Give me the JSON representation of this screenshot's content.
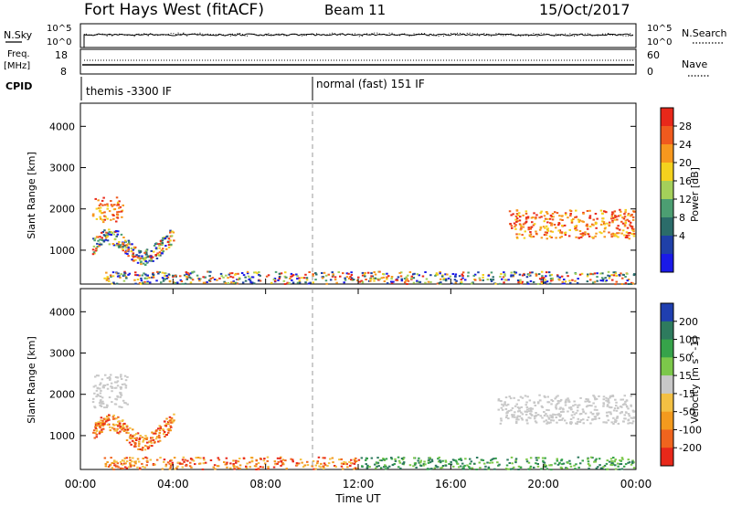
{
  "header": {
    "station": "Fort Hays West (fitACF)",
    "beam": "Beam 11",
    "date": "15/Oct/2017"
  },
  "top_panel": {
    "left_label": "N.Sky",
    "left_ticks": [
      "10^5",
      "10^0"
    ],
    "right_ticks": [
      "10^5",
      "10^0"
    ],
    "right_label": "N.Search"
  },
  "freq_panel": {
    "left_label_1": "Freq.",
    "left_label_2": "[MHz]",
    "left_ticks": [
      "18",
      "8"
    ],
    "right_ticks": [
      "60",
      "0"
    ],
    "right_label": "Nave"
  },
  "cpid_panel": {
    "label": "CPID",
    "mode_1": "themis -3300 IF",
    "mode_2": "normal (fast) 151 IF"
  },
  "chart_data": [
    {
      "type": "heatmap",
      "title": "",
      "xlabel": "",
      "ylabel": "Slant Range [km]",
      "x_ticks": [
        "00:00",
        "04:00",
        "08:00",
        "12:00",
        "16:00",
        "20:00",
        "00:00"
      ],
      "xlim_hours": [
        0,
        24
      ],
      "y_ticks": [
        1000,
        2000,
        3000,
        4000
      ],
      "ylim": [
        180,
        4560
      ],
      "colorbar": {
        "label": "Power [dB]",
        "ticks": [
          "28",
          "24",
          "20",
          "16",
          "12",
          "8",
          "4"
        ],
        "colors": [
          "#e8281a",
          "#f05a1e",
          "#f7981e",
          "#f4d21e",
          "#a4d05a",
          "#4c9e72",
          "#2b6c6a",
          "#1f40a8",
          "#1a1ae8"
        ]
      },
      "regions": [
        {
          "name": "early-band",
          "t": [
            0.5,
            1.8
          ],
          "range_km": [
            1700,
            2300
          ],
          "level": "high"
        },
        {
          "name": "early-arc",
          "t": [
            0.5,
            4.0
          ],
          "range_km": [
            800,
            1600
          ],
          "level": "mixed"
        },
        {
          "name": "ground-scatter-base",
          "t": [
            1.0,
            24.0
          ],
          "range_km": [
            200,
            500
          ],
          "level": "mixed"
        },
        {
          "name": "evening-band",
          "t": [
            18.5,
            24.0
          ],
          "range_km": [
            1300,
            2000
          ],
          "level": "high"
        }
      ]
    },
    {
      "type": "heatmap",
      "title": "",
      "xlabel": "Time UT",
      "ylabel": "Slant Range [km]",
      "x_ticks": [
        "00:00",
        "04:00",
        "08:00",
        "12:00",
        "16:00",
        "20:00",
        "00:00"
      ],
      "xlim_hours": [
        0,
        24
      ],
      "y_ticks": [
        1000,
        2000,
        3000,
        4000
      ],
      "ylim": [
        180,
        4560
      ],
      "colorbar": {
        "label": "Velocity [m s^-1]",
        "ticks": [
          "200",
          "100",
          "50",
          "15",
          "-15",
          "-50",
          "-100",
          "-200"
        ],
        "colors": [
          "#1f3fb0",
          "#2e7b5e",
          "#36a34a",
          "#7cc84a",
          "#c8c8c8",
          "#f3c043",
          "#f39a1e",
          "#f0641e",
          "#e8281a"
        ]
      },
      "regions": [
        {
          "name": "early-gray-band",
          "t": [
            0.5,
            2.0
          ],
          "range_km": [
            1700,
            2500
          ],
          "level": "near-zero"
        },
        {
          "name": "early-red-arc",
          "t": [
            0.5,
            4.0
          ],
          "range_km": [
            800,
            1600
          ],
          "level": "negative"
        },
        {
          "name": "base-orange",
          "t": [
            1.0,
            12.0
          ],
          "range_km": [
            200,
            500
          ],
          "level": "negative"
        },
        {
          "name": "base-green",
          "t": [
            12.0,
            24.0
          ],
          "range_km": [
            200,
            500
          ],
          "level": "positive"
        },
        {
          "name": "evening-gray-band",
          "t": [
            18.0,
            24.0
          ],
          "range_km": [
            1300,
            2000
          ],
          "level": "near-zero"
        }
      ]
    }
  ]
}
